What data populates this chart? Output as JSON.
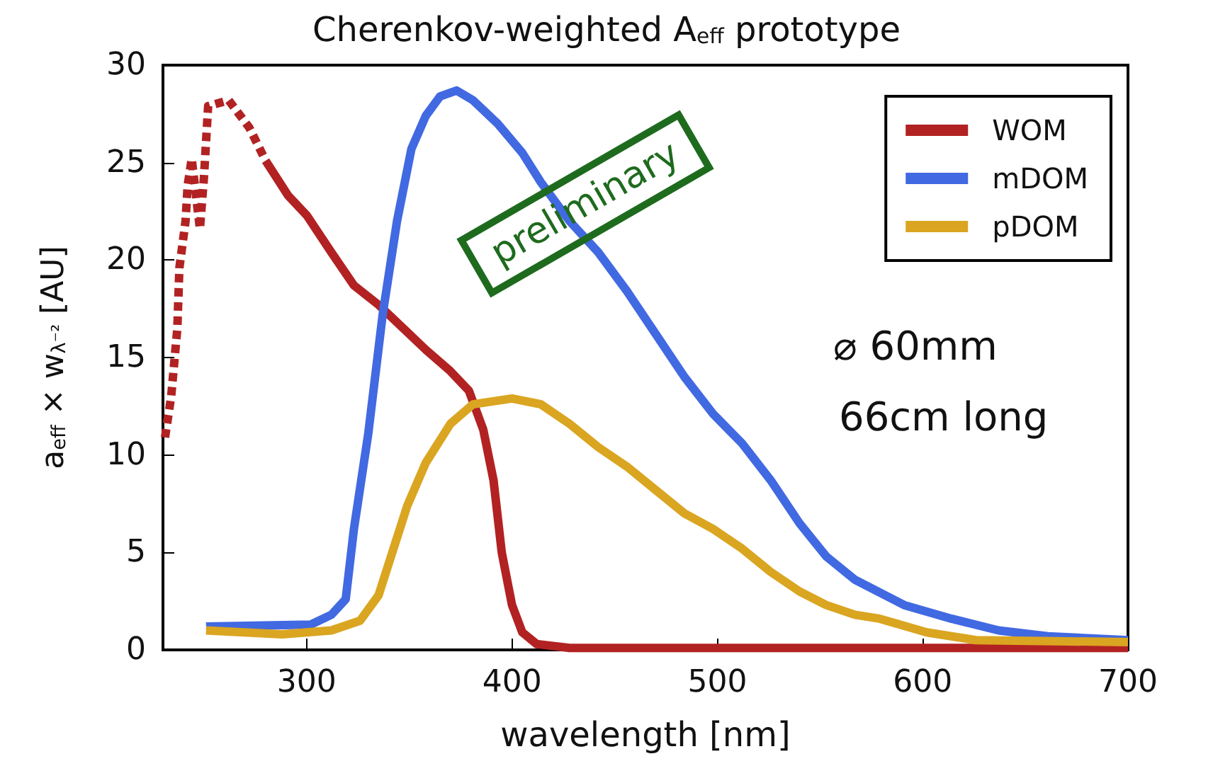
{
  "chart_data": {
    "type": "line",
    "title": "Cherenkov-weighted A$_{eff}$ prototype",
    "xlabel": "wavelength [nm]",
    "ylabel": "a$_{eff}$ × w$_{λ⁻²}$ [AU]",
    "annotations": [
      "preliminary",
      "⌀ 60mm",
      "66cm long"
    ],
    "xlim": [
      230,
      700
    ],
    "xticks": [
      300,
      400,
      500,
      600,
      700
    ],
    "ylim": [
      0,
      30
    ],
    "yticks": [
      0,
      5,
      10,
      15,
      20,
      25,
      30
    ],
    "grid": false,
    "legend": "top right",
    "marker": "none",
    "series": [
      {
        "name": "WOM",
        "color": "#b22222",
        "line_style": "solid",
        "x": [
          280,
          291,
          300,
          312,
          323,
          335,
          347,
          358,
          370,
          379,
          386,
          391,
          395,
          400,
          405,
          412,
          428,
          500,
          600,
          700
        ],
        "values": [
          25.1,
          23.3,
          22.3,
          20.4,
          18.7,
          17.7,
          16.5,
          15.4,
          14.3,
          13.3,
          11.3,
          8.7,
          5.0,
          2.3,
          0.9,
          0.3,
          0.1,
          0.1,
          0.1,
          0.1
        ]
      },
      {
        "color": "#b22222",
        "line_style": "dashed",
        "x": [
          231,
          234,
          237,
          238,
          241,
          242,
          244,
          248,
          250,
          252,
          262,
          272,
          280
        ],
        "values": [
          10.9,
          13.0,
          16.5,
          19.6,
          22.0,
          23.8,
          25.2,
          21.6,
          24.3,
          27.9,
          28.2,
          26.8,
          25.1
        ]
      },
      {
        "name": "mDOM",
        "color": "#4169e1",
        "line_style": "solid",
        "x": [
          251,
          302,
          312,
          319,
          323,
          330,
          337,
          344,
          351,
          358,
          365,
          373,
          381,
          393,
          405,
          414,
          428,
          442,
          456,
          470,
          484,
          498,
          512,
          526,
          540,
          553,
          567,
          591,
          614,
          637,
          661,
          700
        ],
        "values": [
          1.2,
          1.3,
          1.8,
          2.6,
          6.2,
          11.1,
          17.2,
          22.0,
          25.7,
          27.4,
          28.4,
          28.7,
          28.2,
          27.0,
          25.5,
          24.0,
          22.0,
          20.4,
          18.4,
          16.2,
          14.0,
          12.1,
          10.6,
          8.7,
          6.5,
          4.8,
          3.6,
          2.3,
          1.6,
          1.0,
          0.7,
          0.5
        ]
      },
      {
        "name": "pDOM",
        "color": "#daa520",
        "line_style": "solid",
        "x": [
          251,
          288,
          312,
          326,
          335,
          349,
          358,
          370,
          381,
          400,
          414,
          428,
          442,
          456,
          470,
          484,
          498,
          512,
          526,
          540,
          553,
          567,
          579,
          602,
          626,
          700
        ],
        "values": [
          1.0,
          0.8,
          1.0,
          1.5,
          2.8,
          7.4,
          9.6,
          11.6,
          12.6,
          12.9,
          12.6,
          11.6,
          10.4,
          9.4,
          8.2,
          7.0,
          6.2,
          5.2,
          4.0,
          3.0,
          2.3,
          1.8,
          1.6,
          0.9,
          0.5,
          0.4
        ]
      }
    ]
  }
}
